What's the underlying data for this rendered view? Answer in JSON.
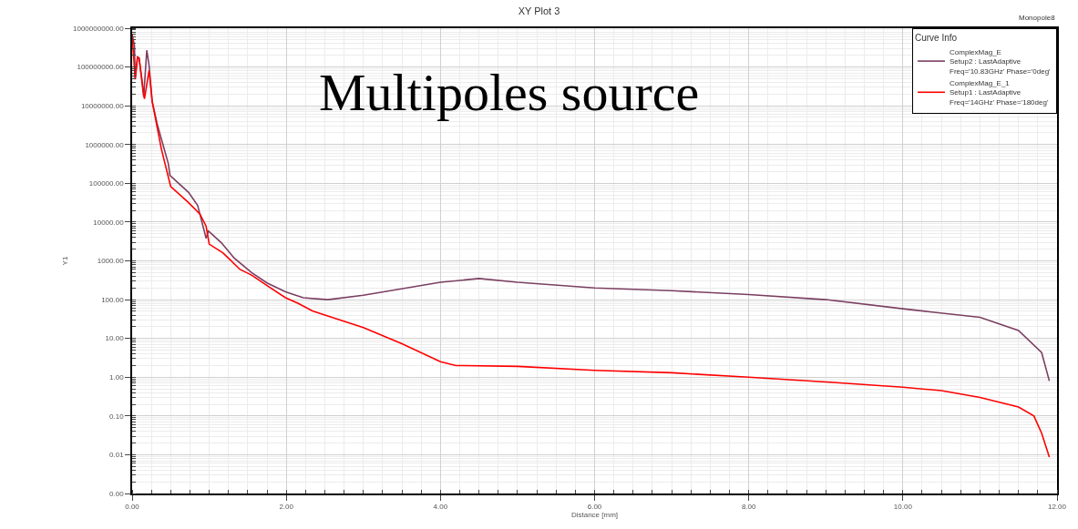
{
  "chart_data": {
    "type": "line",
    "title": "XY Plot 3",
    "xlabel": "Distance [mm]",
    "ylabel": "Y1",
    "legend_title": "Curve Info",
    "annotations": [
      "Monopole8",
      "Multipoles source"
    ],
    "series": [
      {
        "name": "ComplexMag_E\nSetup2 : LastAdaptive\nFreq='10.83GHz' Phase='0deg'",
        "color": "#7b3f61",
        "x": [
          0,
          0.03,
          0.04,
          0.07,
          0.09,
          0.15,
          0.19,
          0.22,
          0.26,
          0.33,
          0.47,
          0.49,
          0.73,
          0.85,
          0.96,
          0.99,
          1.16,
          1.32,
          1.55,
          1.75,
          1.99,
          2.22,
          2.54,
          3.0,
          4.0,
          4.5,
          5.0,
          6.0,
          7.0,
          8.0,
          9.0,
          10.0,
          11.0,
          11.5,
          11.8,
          11.9
        ],
        "values": [
          680000000,
          360000000,
          52000000,
          180000000,
          170000000,
          17000000,
          270000000,
          110000000,
          13000000,
          3100000,
          320000,
          160000,
          59000,
          27000,
          3800,
          5900,
          2900,
          1200,
          500,
          270,
          160,
          112,
          100,
          130,
          280,
          350,
          280,
          200,
          170,
          135,
          100,
          58,
          35,
          16,
          4.3,
          0.8
        ]
      },
      {
        "name": "ComplexMag_E_1\nSetup1 : LastAdaptive\nFreq='14GHz' Phase='180deg'",
        "color": "#ff0000",
        "x": [
          0,
          0.04,
          0.07,
          0.09,
          0.16,
          0.22,
          0.26,
          0.38,
          0.5,
          0.73,
          0.88,
          0.96,
          1.0,
          1.18,
          1.4,
          1.55,
          1.75,
          1.99,
          2.15,
          2.34,
          2.5,
          3.0,
          3.5,
          4.0,
          4.2,
          5.0,
          6.0,
          7.0,
          8.0,
          9.0,
          10.0,
          10.5,
          11.0,
          11.5,
          11.7,
          11.8,
          11.9
        ],
        "values": [
          680000000,
          48000000,
          180000000,
          170000000,
          15000000,
          81000000,
          13000000,
          760000,
          83000,
          32000,
          16000,
          7800,
          2700,
          1600,
          600,
          430,
          230,
          112,
          81,
          51,
          40,
          19,
          7.3,
          2.5,
          2.0,
          1.9,
          1.5,
          1.3,
          1.0,
          0.75,
          0.55,
          0.45,
          0.3,
          0.17,
          0.1,
          0.036,
          0.0087
        ]
      }
    ],
    "xlim": [
      0,
      12
    ],
    "xticks": [
      {
        "value": 0,
        "label": "0.00"
      },
      {
        "value": 2,
        "label": "2.00"
      },
      {
        "value": 4,
        "label": "4.00"
      },
      {
        "value": 6,
        "label": "6.00"
      },
      {
        "value": 8,
        "label": "8.00"
      },
      {
        "value": 10,
        "label": "10.00"
      },
      {
        "value": 12,
        "label": "12.00"
      }
    ],
    "ylim": [
      0.001,
      1000000000
    ],
    "yticks": [
      {
        "value": 0.001,
        "label": "0.00"
      },
      {
        "value": 0.01,
        "label": "0.01"
      },
      {
        "value": 0.1,
        "label": "0.10"
      },
      {
        "value": 1,
        "label": "1.00"
      },
      {
        "value": 10,
        "label": "10.00"
      },
      {
        "value": 100,
        "label": "100.00"
      },
      {
        "value": 1000,
        "label": "1000.00"
      },
      {
        "value": 10000,
        "label": "10000.00"
      },
      {
        "value": 100000,
        "label": "100000.00"
      },
      {
        "value": 1000000,
        "label": "1000000.00"
      },
      {
        "value": 10000000,
        "label": "10000000.00"
      },
      {
        "value": 100000000,
        "label": "100000000.00"
      },
      {
        "value": 1000000000,
        "label": "1000000000.00"
      }
    ],
    "log": "y",
    "grid": true,
    "legend": "top right",
    "line_style": "solid",
    "marker": "none"
  }
}
